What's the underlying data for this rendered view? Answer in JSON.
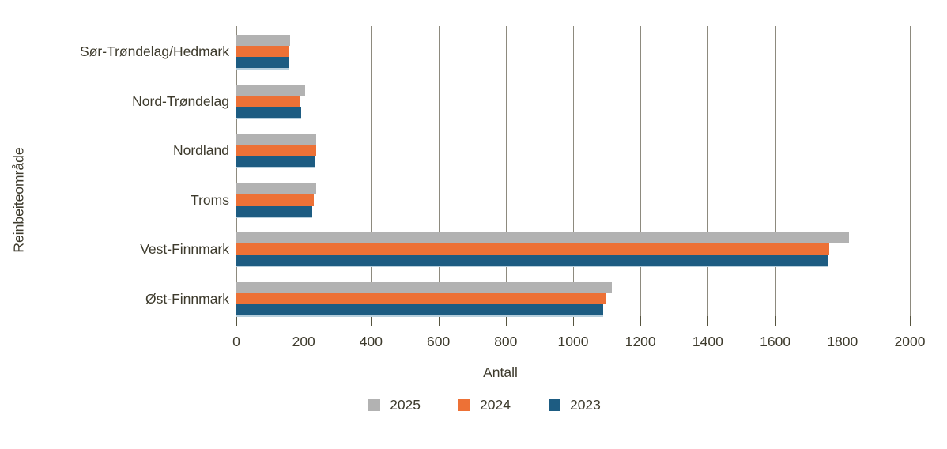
{
  "figure": {
    "x_axis_title": "Antall",
    "y_axis_title": "Reinbeiteområde"
  },
  "colors": {
    "series_2025": "#b2b2b2",
    "series_2024": "#ed7136",
    "series_2023": "#1d5c82",
    "gridline": "#8d8a7e",
    "tick": "#56543f",
    "text": "#3d3a2c"
  },
  "chart_data": {
    "type": "bar",
    "orientation": "horizontal",
    "title": "",
    "xlabel": "Antall",
    "ylabel": "Reinbeiteområde",
    "xlim": [
      0,
      2000
    ],
    "x_ticks": [
      0,
      200,
      400,
      600,
      800,
      1000,
      1200,
      1400,
      1600,
      1800,
      2000
    ],
    "grid": "vertical",
    "legend_position": "bottom",
    "categories": [
      "Sør-Trøndelag/Hedmark",
      "Nord-Trøndelag",
      "Nordland",
      "Troms",
      "Vest-Finnmark",
      "Øst-Finnmark"
    ],
    "series": [
      {
        "name": "2025",
        "color": "#b2b2b2",
        "values": [
          160,
          205,
          238,
          236,
          1820,
          1115
        ]
      },
      {
        "name": "2024",
        "color": "#ed7136",
        "values": [
          156,
          190,
          237,
          230,
          1760,
          1096
        ]
      },
      {
        "name": "2023",
        "color": "#1d5c82",
        "values": [
          154,
          192,
          232,
          226,
          1756,
          1090
        ]
      }
    ]
  }
}
